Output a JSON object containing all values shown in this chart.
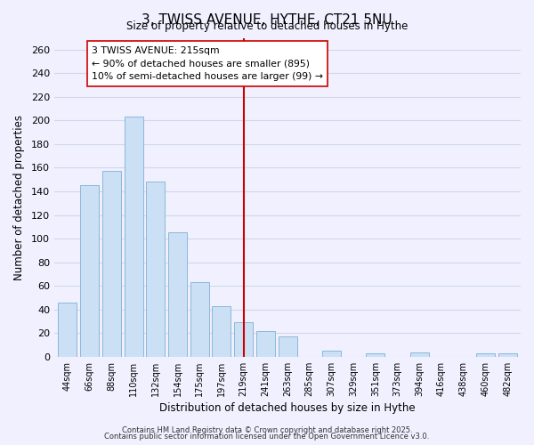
{
  "title": "3, TWISS AVENUE, HYTHE, CT21 5NU",
  "subtitle": "Size of property relative to detached houses in Hythe",
  "xlabel": "Distribution of detached houses by size in Hythe",
  "ylabel": "Number of detached properties",
  "bar_labels": [
    "44sqm",
    "66sqm",
    "88sqm",
    "110sqm",
    "132sqm",
    "154sqm",
    "175sqm",
    "197sqm",
    "219sqm",
    "241sqm",
    "263sqm",
    "285sqm",
    "307sqm",
    "329sqm",
    "351sqm",
    "373sqm",
    "394sqm",
    "416sqm",
    "438sqm",
    "460sqm",
    "482sqm"
  ],
  "bar_values": [
    46,
    145,
    157,
    203,
    148,
    105,
    63,
    43,
    29,
    22,
    17,
    0,
    5,
    0,
    3,
    0,
    4,
    0,
    0,
    3,
    3
  ],
  "bar_color": "#cce0f5",
  "bar_edge_color": "#8ab8d8",
  "background_color": "#f0f0ff",
  "grid_color": "#d0d8e8",
  "vline_x": 8.0,
  "vline_color": "#cc0000",
  "annotation_title": "3 TWISS AVENUE: 215sqm",
  "annotation_line1": "← 90% of detached houses are smaller (895)",
  "annotation_line2": "10% of semi-detached houses are larger (99) →",
  "annotation_box_color": "#ffffff",
  "annotation_box_edge": "#cc0000",
  "ylim": [
    0,
    270
  ],
  "yticks": [
    0,
    20,
    40,
    60,
    80,
    100,
    120,
    140,
    160,
    180,
    200,
    220,
    240,
    260
  ],
  "footnote1": "Contains HM Land Registry data © Crown copyright and database right 2025.",
  "footnote2": "Contains public sector information licensed under the Open Government Licence v3.0."
}
